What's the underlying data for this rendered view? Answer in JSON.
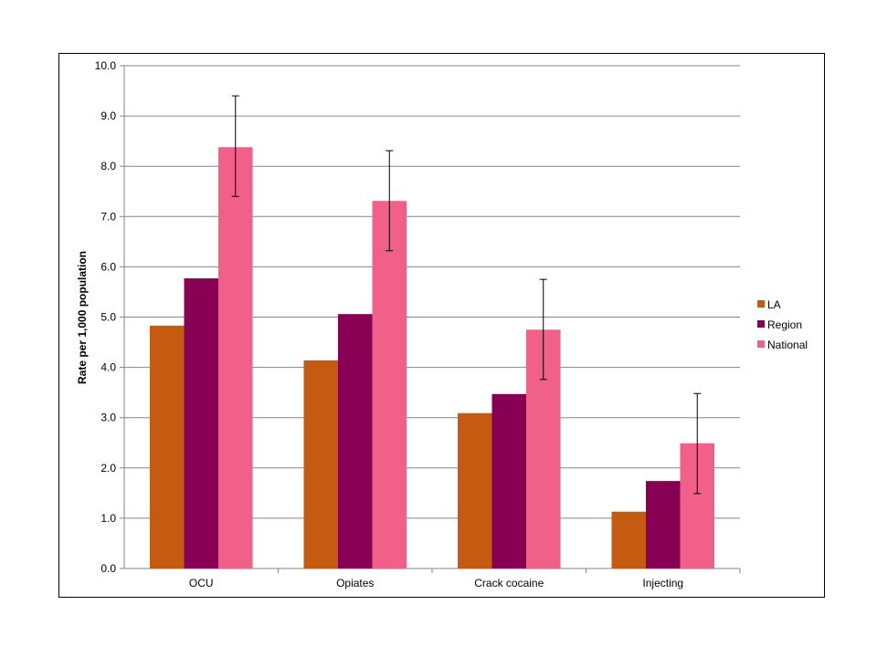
{
  "chart_data": {
    "type": "bar",
    "title": "",
    "xlabel": "",
    "ylabel": "Rate per 1,000 population",
    "ylim": [
      0,
      10
    ],
    "yticks": [
      "0.0",
      "1.0",
      "2.0",
      "3.0",
      "4.0",
      "5.0",
      "6.0",
      "7.0",
      "8.0",
      "9.0",
      "10.0"
    ],
    "grid": true,
    "legend_position": "right",
    "categories": [
      "OCU",
      "Opiates",
      "Crack cocaine",
      "Injecting"
    ],
    "series": [
      {
        "name": "LA",
        "color": "#C55A11",
        "values": [
          4.83,
          4.14,
          3.09,
          1.13
        ]
      },
      {
        "name": "Region",
        "color": "#870054",
        "values": [
          5.77,
          5.06,
          3.47,
          1.74
        ]
      },
      {
        "name": "National",
        "color": "#F06088",
        "values": [
          8.38,
          7.31,
          4.75,
          2.49
        ],
        "error_low": [
          7.4,
          6.32,
          3.76,
          1.49
        ],
        "error_high": [
          9.4,
          8.31,
          5.75,
          3.48
        ]
      }
    ]
  }
}
